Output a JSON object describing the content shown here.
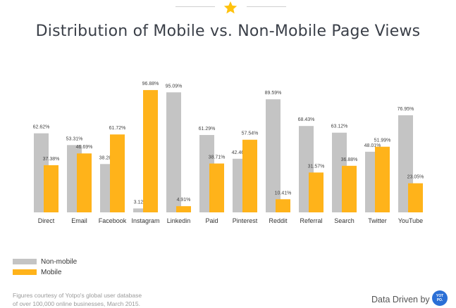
{
  "chart_data": {
    "type": "bar",
    "title": "Distribution of Mobile vs. Non-Mobile Page Views",
    "categories": [
      "Direct",
      "Email",
      "Facebook",
      "Instagram",
      "Linkedin",
      "Paid",
      "Pinterest",
      "Reddit",
      "Referral",
      "Search",
      "Twitter",
      "YouTube"
    ],
    "series": [
      {
        "name": "Non-mobile",
        "color": "#c4c4c4",
        "values": [
          62.62,
          53.31,
          38.28,
          3.12,
          95.09,
          61.29,
          42.46,
          89.59,
          68.43,
          63.12,
          48.01,
          76.95
        ],
        "labels": [
          "62.62%",
          "53.31%",
          "38.28%",
          "3.12%",
          "95.09%",
          "61.29%",
          "42.46%",
          "89.59%",
          "68.43%",
          "63.12%",
          "48.01%",
          "76.95%"
        ]
      },
      {
        "name": "Mobile",
        "color": "#ffb31a",
        "values": [
          37.38,
          46.69,
          61.72,
          96.88,
          4.91,
          38.71,
          57.54,
          10.41,
          31.57,
          36.88,
          51.99,
          23.05
        ],
        "labels": [
          "37.38%",
          "46.69%",
          "61.72%",
          "96.88%",
          "4.91%",
          "38.71%",
          "57.54%",
          "10.41%",
          "31.57%",
          "36.88%",
          "51.99%",
          "23.05%"
        ]
      }
    ],
    "ylim": [
      0,
      100
    ],
    "grid": false,
    "legend_position": "bottom-left"
  },
  "footer": {
    "note_line1": "Figures courtesy of Yotpo's global user database",
    "note_line2": "of over 100,000 online businesses, March 2015.",
    "brand_text": "Data Driven by",
    "logo_line1": "YOT",
    "logo_line2": "PO."
  },
  "icons": {
    "header": "star-icon"
  }
}
